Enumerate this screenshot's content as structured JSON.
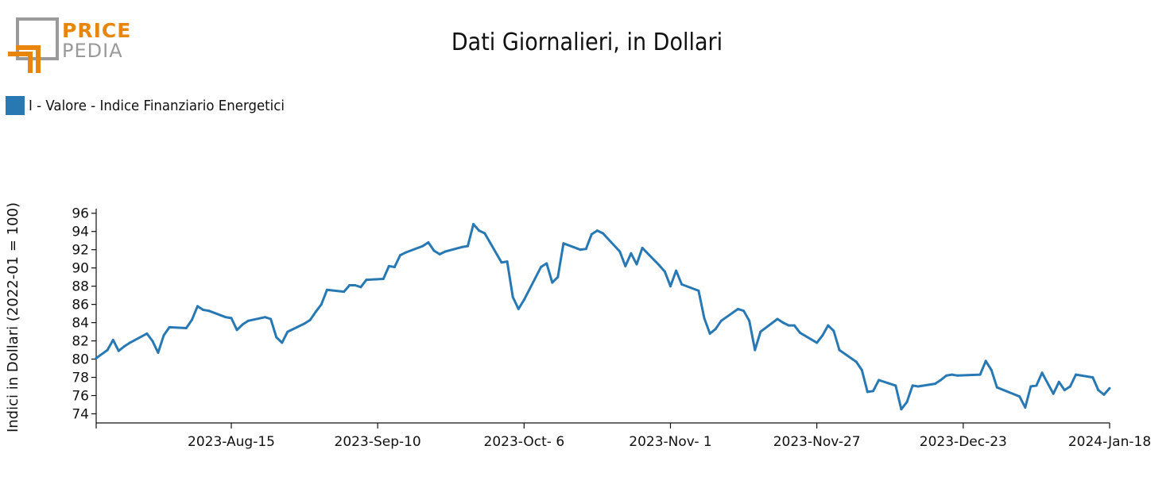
{
  "logo": {
    "top": "PRICE",
    "bottom": "PEDIA",
    "orange": "#e8850c",
    "gray": "#9a9a9a"
  },
  "chart_data": {
    "type": "line",
    "title": "Dati Giornalieri, in Dollari",
    "ylabel": "Indici in Dollari (2022-01 = 100)",
    "xlabel": "",
    "legend_position": "top-left",
    "grid": false,
    "ylim": [
      73,
      96.5
    ],
    "xlim": [
      "2023-07-22",
      "2024-01-18"
    ],
    "y_ticks": [
      74,
      76,
      78,
      80,
      82,
      84,
      86,
      88,
      90,
      92,
      94,
      96
    ],
    "x_ticks": [
      {
        "date": "2023-07-22",
        "label": ""
      },
      {
        "date": "2023-08-15",
        "label": "2023-Aug-15"
      },
      {
        "date": "2023-09-10",
        "label": "2023-Sep-10"
      },
      {
        "date": "2023-10-06",
        "label": "2023-Oct- 6"
      },
      {
        "date": "2023-11-01",
        "label": "2023-Nov- 1"
      },
      {
        "date": "2023-11-27",
        "label": "2023-Nov-27"
      },
      {
        "date": "2023-12-23",
        "label": "2023-Dec-23"
      },
      {
        "date": "2024-01-18",
        "label": "2024-Jan-18"
      }
    ],
    "series": [
      {
        "name": "I - Valore - Indice Finanziario Energetici",
        "color": "#2878b4",
        "points": [
          [
            "2023-07-22",
            80.1
          ],
          [
            "2023-07-24",
            81.0
          ],
          [
            "2023-07-25",
            82.1
          ],
          [
            "2023-07-26",
            80.9
          ],
          [
            "2023-07-27",
            81.4
          ],
          [
            "2023-07-28",
            81.8
          ],
          [
            "2023-07-31",
            82.8
          ],
          [
            "2023-08-01",
            82.0
          ],
          [
            "2023-08-02",
            80.7
          ],
          [
            "2023-08-03",
            82.6
          ],
          [
            "2023-08-04",
            83.5
          ],
          [
            "2023-08-07",
            83.4
          ],
          [
            "2023-08-08",
            84.3
          ],
          [
            "2023-08-09",
            85.8
          ],
          [
            "2023-08-10",
            85.4
          ],
          [
            "2023-08-11",
            85.3
          ],
          [
            "2023-08-14",
            84.6
          ],
          [
            "2023-08-15",
            84.5
          ],
          [
            "2023-08-16",
            83.2
          ],
          [
            "2023-08-17",
            83.8
          ],
          [
            "2023-08-18",
            84.2
          ],
          [
            "2023-08-21",
            84.6
          ],
          [
            "2023-08-22",
            84.4
          ],
          [
            "2023-08-23",
            82.4
          ],
          [
            "2023-08-24",
            81.8
          ],
          [
            "2023-08-25",
            83.0
          ],
          [
            "2023-08-28",
            83.9
          ],
          [
            "2023-08-29",
            84.3
          ],
          [
            "2023-08-30",
            85.2
          ],
          [
            "2023-08-31",
            86.0
          ],
          [
            "2023-09-01",
            87.6
          ],
          [
            "2023-09-04",
            87.4
          ],
          [
            "2023-09-05",
            88.1
          ],
          [
            "2023-09-06",
            88.1
          ],
          [
            "2023-09-07",
            87.9
          ],
          [
            "2023-09-08",
            88.7
          ],
          [
            "2023-09-11",
            88.8
          ],
          [
            "2023-09-12",
            90.2
          ],
          [
            "2023-09-13",
            90.1
          ],
          [
            "2023-09-14",
            91.4
          ],
          [
            "2023-09-15",
            91.7
          ],
          [
            "2023-09-18",
            92.4
          ],
          [
            "2023-09-19",
            92.8
          ],
          [
            "2023-09-20",
            91.9
          ],
          [
            "2023-09-21",
            91.5
          ],
          [
            "2023-09-22",
            91.8
          ],
          [
            "2023-09-25",
            92.3
          ],
          [
            "2023-09-26",
            92.4
          ],
          [
            "2023-09-27",
            94.8
          ],
          [
            "2023-09-28",
            94.1
          ],
          [
            "2023-09-29",
            93.8
          ],
          [
            "2023-10-02",
            90.6
          ],
          [
            "2023-10-03",
            90.7
          ],
          [
            "2023-10-04",
            86.8
          ],
          [
            "2023-10-05",
            85.5
          ],
          [
            "2023-10-06",
            86.5
          ],
          [
            "2023-10-09",
            90.1
          ],
          [
            "2023-10-10",
            90.5
          ],
          [
            "2023-10-11",
            88.4
          ],
          [
            "2023-10-12",
            89.0
          ],
          [
            "2023-10-13",
            92.7
          ],
          [
            "2023-10-16",
            92.0
          ],
          [
            "2023-10-17",
            92.1
          ],
          [
            "2023-10-18",
            93.7
          ],
          [
            "2023-10-19",
            94.1
          ],
          [
            "2023-10-20",
            93.8
          ],
          [
            "2023-10-23",
            91.8
          ],
          [
            "2023-10-24",
            90.2
          ],
          [
            "2023-10-25",
            91.6
          ],
          [
            "2023-10-26",
            90.4
          ],
          [
            "2023-10-27",
            92.2
          ],
          [
            "2023-10-30",
            90.3
          ],
          [
            "2023-10-31",
            89.6
          ],
          [
            "2023-11-01",
            88.0
          ],
          [
            "2023-11-02",
            89.7
          ],
          [
            "2023-11-03",
            88.2
          ],
          [
            "2023-11-06",
            87.5
          ],
          [
            "2023-11-07",
            84.5
          ],
          [
            "2023-11-08",
            82.8
          ],
          [
            "2023-11-09",
            83.3
          ],
          [
            "2023-11-10",
            84.2
          ],
          [
            "2023-11-13",
            85.5
          ],
          [
            "2023-11-14",
            85.3
          ],
          [
            "2023-11-15",
            84.2
          ],
          [
            "2023-11-16",
            81.0
          ],
          [
            "2023-11-17",
            83.0
          ],
          [
            "2023-11-20",
            84.4
          ],
          [
            "2023-11-21",
            84.0
          ],
          [
            "2023-11-22",
            83.7
          ],
          [
            "2023-11-23",
            83.7
          ],
          [
            "2023-11-24",
            82.9
          ],
          [
            "2023-11-27",
            81.8
          ],
          [
            "2023-11-28",
            82.6
          ],
          [
            "2023-11-29",
            83.7
          ],
          [
            "2023-11-30",
            83.1
          ],
          [
            "2023-12-01",
            81.0
          ],
          [
            "2023-12-04",
            79.7
          ],
          [
            "2023-12-05",
            78.8
          ],
          [
            "2023-12-06",
            76.4
          ],
          [
            "2023-12-07",
            76.5
          ],
          [
            "2023-12-08",
            77.7
          ],
          [
            "2023-12-11",
            77.1
          ],
          [
            "2023-12-12",
            74.5
          ],
          [
            "2023-12-13",
            75.3
          ],
          [
            "2023-12-14",
            77.1
          ],
          [
            "2023-12-15",
            77.0
          ],
          [
            "2023-12-18",
            77.3
          ],
          [
            "2023-12-19",
            77.7
          ],
          [
            "2023-12-20",
            78.2
          ],
          [
            "2023-12-21",
            78.3
          ],
          [
            "2023-12-22",
            78.2
          ],
          [
            "2023-12-26",
            78.3
          ],
          [
            "2023-12-27",
            79.8
          ],
          [
            "2023-12-28",
            78.8
          ],
          [
            "2023-12-29",
            76.9
          ],
          [
            "2024-01-02",
            75.9
          ],
          [
            "2024-01-03",
            74.7
          ],
          [
            "2024-01-04",
            77.0
          ],
          [
            "2024-01-05",
            77.1
          ],
          [
            "2024-01-06",
            78.5
          ],
          [
            "2024-01-08",
            76.2
          ],
          [
            "2024-01-09",
            77.5
          ],
          [
            "2024-01-10",
            76.6
          ],
          [
            "2024-01-11",
            77.0
          ],
          [
            "2024-01-12",
            78.3
          ],
          [
            "2024-01-15",
            78.0
          ],
          [
            "2024-01-16",
            76.6
          ],
          [
            "2024-01-17",
            76.1
          ],
          [
            "2024-01-18",
            76.8
          ]
        ]
      }
    ]
  }
}
